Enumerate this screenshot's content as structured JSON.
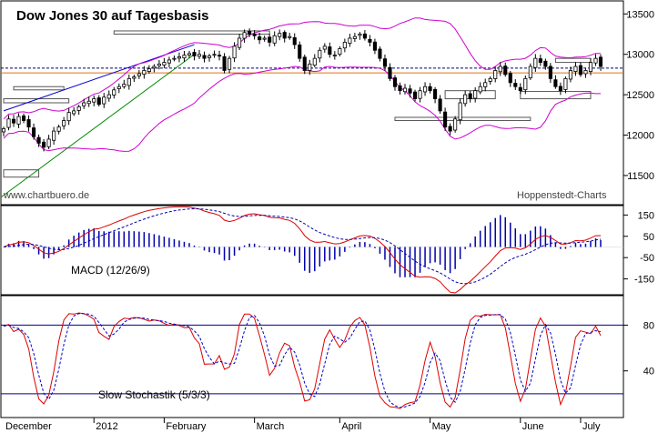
{
  "chart_data": [
    {
      "type": "candlestick",
      "title": "Dow Jones 30 auf Tagesbasis",
      "watermark_left": "www.chartbuero.de",
      "watermark_right": "Hoppenstedt-Charts",
      "ylim": [
        11150,
        13650
      ],
      "yticks": [
        11500,
        12000,
        12500,
        13000,
        13500
      ],
      "months": [
        "December",
        "2012",
        "February",
        "March",
        "April",
        "May",
        "June",
        "July"
      ],
      "close": [
        12080,
        12200,
        12150,
        12230,
        12180,
        12100,
        11980,
        11900,
        11850,
        11950,
        12050,
        12100,
        12180,
        12280,
        12300,
        12350,
        12400,
        12420,
        12450,
        12380,
        12470,
        12500,
        12560,
        12600,
        12630,
        12700,
        12720,
        12760,
        12800,
        12820,
        12850,
        12880,
        12900,
        12930,
        12950,
        12970,
        12990,
        13010,
        12980,
        13000,
        12950,
        12980,
        13000,
        12980,
        12800,
        12950,
        13100,
        13200,
        13270,
        13250,
        13230,
        13180,
        13200,
        13150,
        13230,
        13260,
        13200,
        13220,
        13120,
        12950,
        12800,
        12880,
        12950,
        13050,
        13100,
        13000,
        12990,
        13070,
        13150,
        13200,
        13220,
        13250,
        13200,
        13150,
        13050,
        12950,
        12850,
        12700,
        12600,
        12550,
        12580,
        12520,
        12450,
        12550,
        12600,
        12550,
        12450,
        12300,
        12100,
        12050,
        12200,
        12400,
        12500,
        12450,
        12550,
        12600,
        12650,
        12700,
        12800,
        12850,
        12750,
        12650,
        12600,
        12550,
        12700,
        12850,
        12950,
        12900,
        12850,
        12700,
        12600,
        12550,
        12700,
        12800,
        12850,
        12750,
        12800,
        12900,
        12950,
        12850
      ],
      "support_lines": [
        12770,
        12830
      ],
      "boxes": [
        {
          "from": 0,
          "to": 7,
          "low": 11480,
          "high": 11570
        },
        {
          "from": 0,
          "to": 13,
          "low": 12400,
          "high": 12450
        },
        {
          "from": 2,
          "to": 12,
          "low": 12560,
          "high": 12600
        },
        {
          "from": 22,
          "to": 53,
          "low": 13250,
          "high": 13290
        },
        {
          "from": 88,
          "to": 98,
          "low": 12450,
          "high": 12550
        },
        {
          "from": 78,
          "to": 105,
          "low": 12180,
          "high": 12220
        },
        {
          "from": 103,
          "to": 117,
          "low": 12450,
          "high": 12540
        },
        {
          "from": 110,
          "to": 117,
          "low": 12900,
          "high": 12950
        }
      ]
    },
    {
      "type": "line",
      "label": "MACD (12/26/9)",
      "ylim": [
        -220,
        190
      ],
      "yticks": [
        150,
        50,
        -50,
        -150
      ]
    },
    {
      "type": "line",
      "label": "Slow Stochastik (5/3/3)",
      "ylim": [
        0,
        105
      ],
      "yticks": [
        80,
        40
      ],
      "hlines": [
        80,
        20
      ]
    }
  ],
  "colors": {
    "candle_up": "#ffffff",
    "candle_down": "#000000",
    "bollinger": "#d000d0",
    "trend_blue": "#0000cc",
    "trend_green": "#008800",
    "orange_line": "#e07010",
    "macd_line": "#dd0000",
    "signal_line": "#0000aa",
    "histogram": "#0000aa",
    "stoch_k": "#dd0000",
    "stoch_d": "#0000cc",
    "hline": "#000080"
  }
}
